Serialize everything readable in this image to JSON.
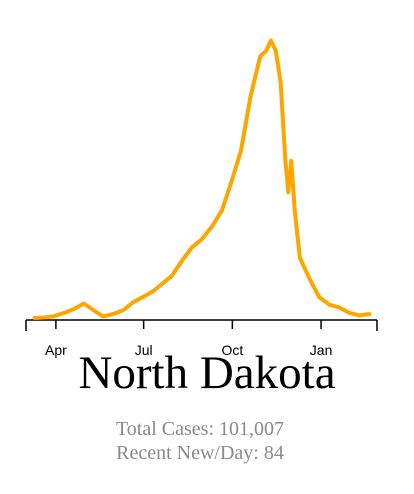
{
  "title": "North Dakota",
  "stats": {
    "total_cases": "Total Cases: 101,007",
    "recent_new": "Recent New/Day: 84"
  },
  "colors": {
    "line": "#FFA500",
    "axis": "#000000",
    "stats_text": "#8a8a8a"
  },
  "chart_data": {
    "type": "line",
    "title": "North Dakota",
    "xlabel": "",
    "ylabel": "",
    "grid": false,
    "x_ticks": [
      "Apr",
      "Jul",
      "Oct",
      "Jan"
    ],
    "x": [
      "2020-03-10",
      "2020-03-20",
      "2020-03-30",
      "2020-04-10",
      "2020-04-20",
      "2020-04-30",
      "2020-05-10",
      "2020-05-20",
      "2020-05-30",
      "2020-06-10",
      "2020-06-20",
      "2020-06-30",
      "2020-07-10",
      "2020-07-20",
      "2020-07-30",
      "2020-08-10",
      "2020-08-20",
      "2020-08-30",
      "2020-09-10",
      "2020-09-20",
      "2020-09-30",
      "2020-10-10",
      "2020-10-20",
      "2020-10-30",
      "2020-11-05",
      "2020-11-10",
      "2020-11-15",
      "2020-11-20",
      "2020-11-25",
      "2020-11-28",
      "2020-12-01",
      "2020-12-05",
      "2020-12-10",
      "2020-12-20",
      "2020-12-30",
      "2021-01-10",
      "2021-01-20",
      "2021-01-30",
      "2021-02-10",
      "2021-02-20"
    ],
    "series": [
      {
        "values": [
          0,
          2,
          7,
          20,
          35,
          55,
          30,
          6,
          15,
          30,
          60,
          80,
          100,
          130,
          160,
          220,
          270,
          300,
          350,
          410,
          520,
          640,
          850,
          1000,
          1020,
          1060,
          1020,
          900,
          600,
          480,
          600,
          400,
          230,
          150,
          80,
          50,
          40,
          20,
          10,
          15
        ]
      }
    ],
    "ylim": [
      0,
      1100
    ]
  }
}
